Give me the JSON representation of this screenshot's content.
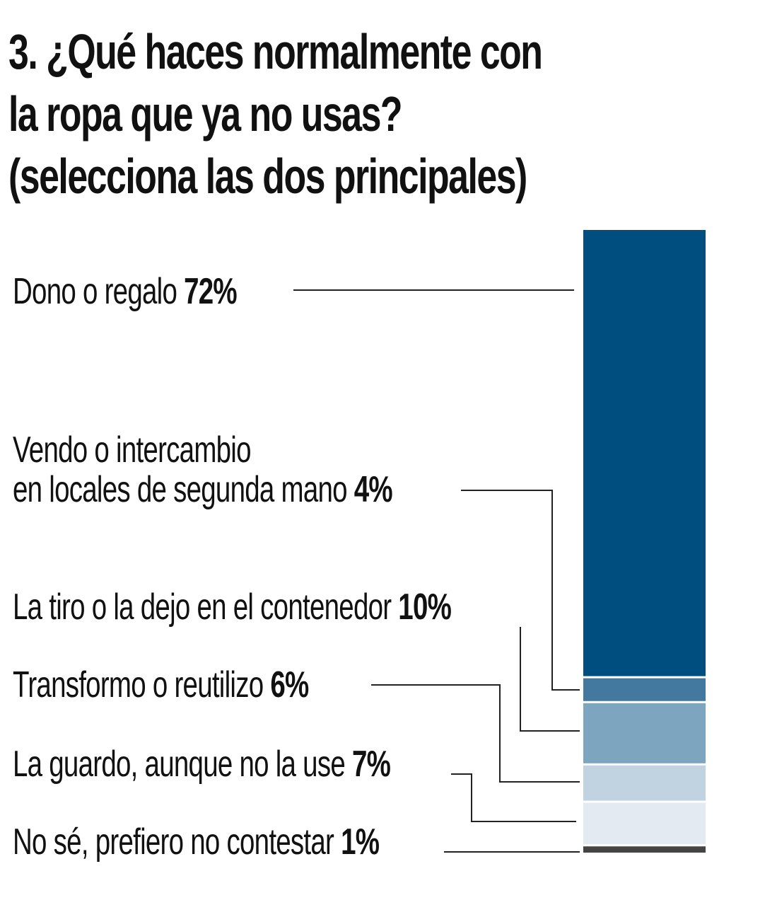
{
  "chart_data": {
    "type": "bar",
    "subtype": "stacked-100",
    "title_lines": [
      "3. ¿Qué haces normalmente con",
      "la ropa que ya no usas?",
      "(selecciona las dos principales)"
    ],
    "categories": [
      {
        "label": "Dono o regalo",
        "value": 72,
        "value_label": "72%",
        "color": "#004d80"
      },
      {
        "label": "Vendo o intercambio",
        "label2": "en locales de segunda mano",
        "value": 4,
        "value_label": "4%",
        "color": "#44799f"
      },
      {
        "label": "La tiro o la dejo en el contenedor",
        "value": 10,
        "value_label": "10%",
        "color": "#7ea5bf"
      },
      {
        "label": "Transformo o reutilizo",
        "value": 6,
        "value_label": "6%",
        "color": "#c1d3e0"
      },
      {
        "label": "La guardo, aunque no la use",
        "value": 7,
        "value_label": "7%",
        "color": "#e3eaf2"
      },
      {
        "label": "No sé, prefiero no contestar",
        "value": 1,
        "value_label": "1%",
        "color": "#444444"
      }
    ]
  }
}
